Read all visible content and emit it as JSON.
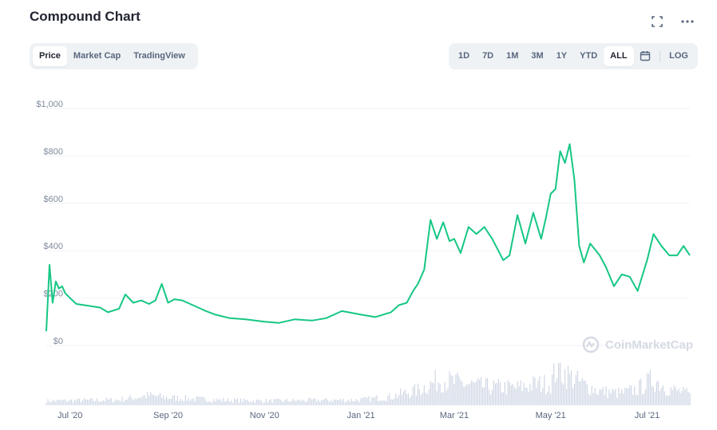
{
  "header": {
    "title": "Compound Chart"
  },
  "toolbar_left": [
    "Price",
    "Market Cap",
    "TradingView"
  ],
  "toolbar_left_active": 0,
  "toolbar_right": [
    "1D",
    "7D",
    "1M",
    "3M",
    "1Y",
    "YTD",
    "ALL"
  ],
  "toolbar_right_active": 6,
  "toolbar_log_label": "LOG",
  "icons": {
    "fullscreen": "fullscreen-icon",
    "more": "more-dots-icon",
    "calendar": "calendar-icon",
    "watermark": "coinmarketcap-logo-icon"
  },
  "watermark_text": "CoinMarketCap",
  "colors": {
    "line": "#16c784",
    "volume": "#cfd6e4",
    "grid": "#eff2f5",
    "accent_text": "#58667e"
  },
  "chart_data": {
    "type": "line",
    "y_axis": {
      "min": 0,
      "max": 1000,
      "ticks": [
        0,
        200,
        400,
        600,
        800,
        1000
      ],
      "tick_labels": [
        "$0",
        "$200",
        "$400",
        "$600",
        "$800",
        "$1,000"
      ]
    },
    "x_axis": {
      "range": [
        "2020-06-16",
        "2021-07-28"
      ],
      "ticks": [
        "2020-07-01",
        "2020-09-01",
        "2020-11-01",
        "2021-01-01",
        "2021-03-01",
        "2021-05-01",
        "2021-07-01"
      ],
      "tick_labels": [
        "Jul '20",
        "Sep '20",
        "Nov '20",
        "Jan '21",
        "Mar '21",
        "May '21",
        "Jul '21"
      ]
    },
    "grid": true,
    "series": [
      {
        "values_x": [
          "2020-06-16",
          "2020-06-18",
          "2020-06-20",
          "2020-06-22",
          "2020-06-24",
          "2020-06-26",
          "2020-06-28",
          "2020-07-01",
          "2020-07-05",
          "2020-07-10",
          "2020-07-15",
          "2020-07-20",
          "2020-07-25",
          "2020-08-01",
          "2020-08-05",
          "2020-08-10",
          "2020-08-15",
          "2020-08-20",
          "2020-08-24",
          "2020-08-28",
          "2020-09-01",
          "2020-09-05",
          "2020-09-10",
          "2020-09-15",
          "2020-09-20",
          "2020-09-25",
          "2020-10-01",
          "2020-10-10",
          "2020-10-20",
          "2020-11-01",
          "2020-11-10",
          "2020-11-20",
          "2020-12-01",
          "2020-12-10",
          "2020-12-20",
          "2021-01-01",
          "2021-01-10",
          "2021-01-20",
          "2021-01-25",
          "2021-01-30",
          "2021-02-03",
          "2021-02-06",
          "2021-02-10",
          "2021-02-14",
          "2021-02-18",
          "2021-02-22",
          "2021-02-26",
          "2021-03-01",
          "2021-03-05",
          "2021-03-10",
          "2021-03-15",
          "2021-03-20",
          "2021-03-25",
          "2021-04-01",
          "2021-04-05",
          "2021-04-10",
          "2021-04-15",
          "2021-04-20",
          "2021-04-25",
          "2021-04-28",
          "2021-05-01",
          "2021-05-04",
          "2021-05-07",
          "2021-05-10",
          "2021-05-13",
          "2021-05-16",
          "2021-05-19",
          "2021-05-22",
          "2021-05-26",
          "2021-06-01",
          "2021-06-05",
          "2021-06-10",
          "2021-06-15",
          "2021-06-20",
          "2021-06-25",
          "2021-07-01",
          "2021-07-05",
          "2021-07-10",
          "2021-07-15",
          "2021-07-20",
          "2021-07-24",
          "2021-07-28"
        ],
        "values_y": [
          60,
          340,
          180,
          270,
          240,
          250,
          220,
          200,
          175,
          170,
          165,
          160,
          140,
          155,
          215,
          180,
          190,
          175,
          190,
          260,
          180,
          195,
          190,
          175,
          160,
          145,
          130,
          115,
          110,
          100,
          95,
          110,
          105,
          115,
          145,
          130,
          120,
          140,
          170,
          180,
          230,
          260,
          320,
          530,
          450,
          520,
          440,
          450,
          390,
          500,
          470,
          500,
          450,
          360,
          380,
          550,
          430,
          560,
          450,
          540,
          640,
          660,
          820,
          770,
          850,
          700,
          420,
          350,
          430,
          380,
          330,
          250,
          300,
          290,
          230,
          360,
          470,
          420,
          380,
          380,
          420,
          380
        ]
      }
    ],
    "volume": {
      "values_x": [
        "2020-06-16",
        "2020-08-01",
        "2020-08-20",
        "2020-09-01",
        "2020-10-01",
        "2020-11-01",
        "2020-12-01",
        "2021-01-01",
        "2021-01-20",
        "2021-02-06",
        "2021-02-15",
        "2021-02-20",
        "2021-03-01",
        "2021-03-20",
        "2021-04-10",
        "2021-04-20",
        "2021-05-01",
        "2021-05-05",
        "2021-05-12",
        "2021-05-20",
        "2021-06-01",
        "2021-06-15",
        "2021-06-25",
        "2021-07-05",
        "2021-07-15",
        "2021-07-28"
      ],
      "values_y": [
        8,
        10,
        18,
        14,
        10,
        8,
        9,
        10,
        16,
        28,
        40,
        48,
        42,
        34,
        32,
        38,
        40,
        70,
        55,
        40,
        26,
        22,
        30,
        48,
        30,
        20
      ]
    }
  }
}
